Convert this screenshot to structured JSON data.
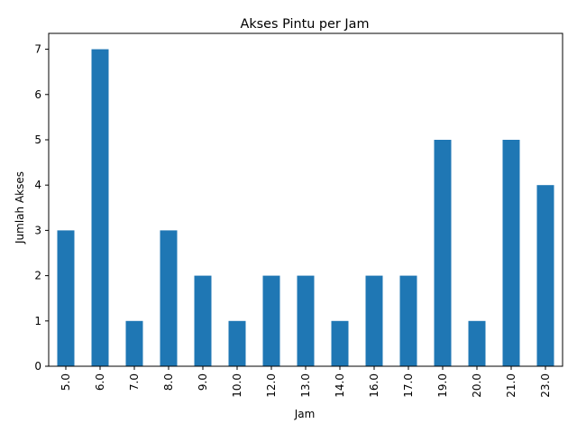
{
  "chart_data": {
    "type": "bar",
    "title": "Akses Pintu per Jam",
    "xlabel": "Jam",
    "ylabel": "Jumlah Akses",
    "categories": [
      "5.0",
      "6.0",
      "7.0",
      "8.0",
      "9.0",
      "10.0",
      "12.0",
      "13.0",
      "14.0",
      "16.0",
      "17.0",
      "19.0",
      "20.0",
      "21.0",
      "23.0"
    ],
    "values": [
      3,
      7,
      1,
      3,
      2,
      1,
      2,
      2,
      1,
      2,
      2,
      5,
      1,
      5,
      4
    ],
    "ylim": [
      0,
      7.35
    ],
    "yticks": [
      0,
      1,
      2,
      3,
      4,
      5,
      6,
      7
    ],
    "grid": false,
    "bar_color": "#1f77b4"
  }
}
